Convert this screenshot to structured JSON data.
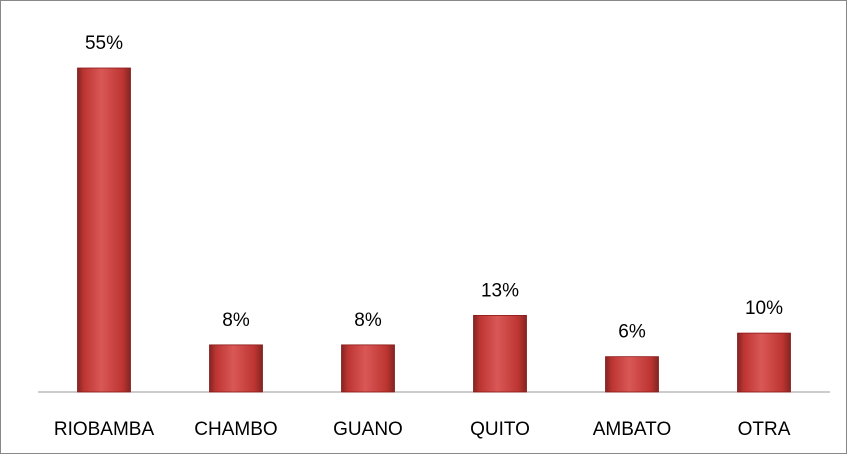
{
  "chart_data": {
    "type": "bar",
    "categories": [
      "RIOBAMBA",
      "CHAMBO",
      "GUANO",
      "QUITO",
      "AMBATO",
      "OTRA"
    ],
    "values": [
      55,
      8,
      8,
      13,
      6,
      10
    ],
    "value_labels": [
      "55%",
      "8%",
      "8%",
      "13%",
      "6%",
      "10%"
    ],
    "color": "#d23b38"
  }
}
